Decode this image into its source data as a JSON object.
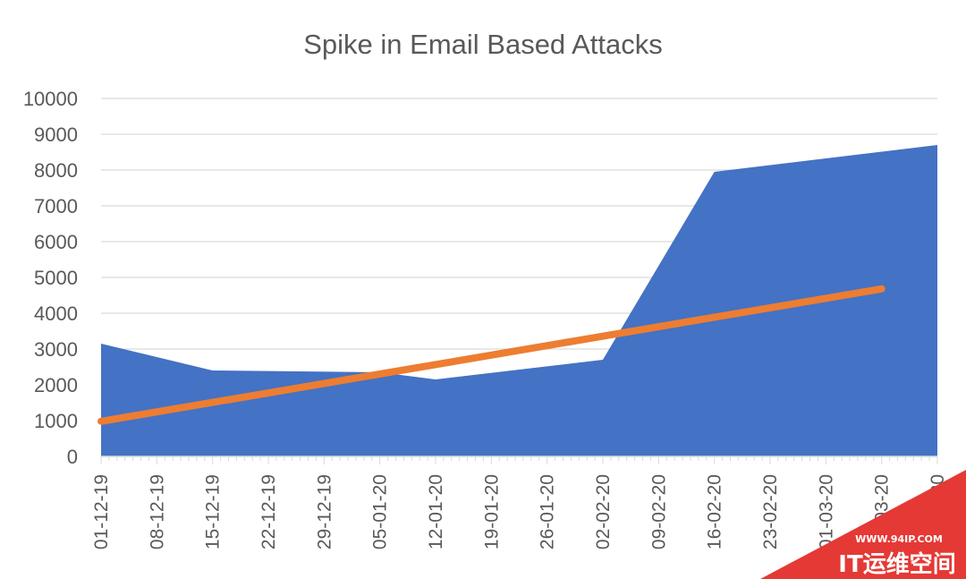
{
  "chart_data": {
    "type": "area",
    "title": "Spike in Email Based  Attacks",
    "xlabel": "",
    "ylabel": "",
    "ylim": [
      0,
      10000
    ],
    "yticks": [
      0,
      1000,
      2000,
      3000,
      4000,
      5000,
      6000,
      7000,
      8000,
      9000,
      10000
    ],
    "x_tick_labels": [
      "01-12-19",
      "08-12-19",
      "15-12-19",
      "22-12-19",
      "29-12-19",
      "05-01-20",
      "12-01-20",
      "19-01-20",
      "26-01-20",
      "02-02-20",
      "09-02-20",
      "16-02-20",
      "23-02-20",
      "01-03-20",
      "08-03-20",
      "15-03-20"
    ],
    "grid": true,
    "legend": "none",
    "series": [
      {
        "type": "area",
        "color": "#4472c4",
        "x": [
          "01-12-19",
          "15-12-19",
          "05-01-20",
          "12-01-20",
          "02-02-20",
          "16-02-20",
          "15-03-20"
        ],
        "values": [
          3150,
          2400,
          2350,
          2150,
          2700,
          7950,
          8700
        ]
      },
      {
        "type": "trendline",
        "color": "#ed7d31",
        "x": [
          "01-12-19",
          "08-03-20"
        ],
        "values": [
          980,
          4680
        ]
      }
    ]
  },
  "watermark": {
    "url": "WWW.94IP.COM",
    "text": "IT运维空间"
  }
}
